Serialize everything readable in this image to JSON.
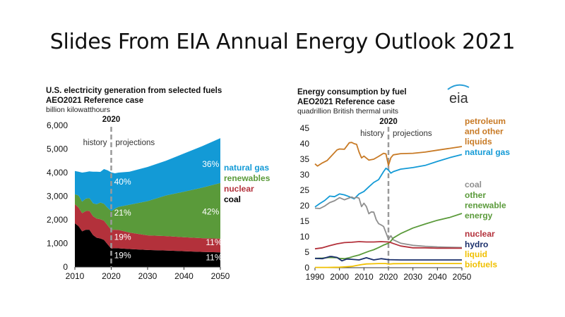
{
  "slide": {
    "title": "Slides From EIA Annual Energy Outlook 2021"
  },
  "colors": {
    "natural_gas": "#139ad6",
    "renewables": "#5a9a3a",
    "nuclear": "#b3313b",
    "coal": "#000000",
    "petroleum": "#c87a25",
    "coal_line": "#8f8f8f",
    "hydro": "#1a2f6b",
    "biofuels": "#f0c000"
  },
  "chart_data": [
    {
      "type": "area",
      "title": "U.S. electricity generation from selected fuels",
      "subtitle": "AEO2021 Reference case",
      "unit": "billion kilowatthours",
      "divider_label": "2020",
      "history_label": "history",
      "projection_label": "projections",
      "xlim": [
        2010,
        2050
      ],
      "ylim": [
        0,
        6000
      ],
      "x_ticks": [
        2010,
        2020,
        2030,
        2040,
        2050
      ],
      "y_ticks": [
        0,
        1000,
        2000,
        3000,
        4000,
        5000,
        6000
      ],
      "y_tick_labels": [
        "0",
        "1,000",
        "2,000",
        "3,000",
        "4,000",
        "5,000",
        "6,000"
      ],
      "x": [
        2010,
        2011,
        2012,
        2013,
        2014,
        2015,
        2016,
        2017,
        2018,
        2019,
        2020,
        2021,
        2022,
        2025,
        2030,
        2035,
        2040,
        2045,
        2050
      ],
      "series": [
        {
          "name": "coal",
          "color_key": "coal",
          "values": [
            1850,
            1730,
            1510,
            1580,
            1580,
            1350,
            1240,
            1210,
            1150,
            960,
            780,
            800,
            790,
            760,
            720,
            700,
            670,
            640,
            620
          ]
        },
        {
          "name": "nuclear",
          "color_key": "nuclear",
          "values": [
            810,
            790,
            770,
            790,
            800,
            800,
            810,
            810,
            810,
            810,
            790,
            780,
            780,
            700,
            620,
            610,
            590,
            580,
            580
          ]
        },
        {
          "name": "renewables",
          "color_key": "renewables",
          "values": [
            420,
            510,
            490,
            530,
            540,
            550,
            610,
            710,
            720,
            740,
            800,
            890,
            980,
            1180,
            1450,
            1720,
            1930,
            2140,
            2360
          ]
        },
        {
          "name": "natural gas",
          "color_key": "natural_gas",
          "values": [
            990,
            1010,
            1230,
            1120,
            1130,
            1340,
            1380,
            1300,
            1470,
            1590,
            1640,
            1500,
            1450,
            1400,
            1450,
            1470,
            1620,
            1760,
            1900
          ]
        }
      ],
      "annotations": [
        {
          "text": "40%",
          "x": 2020.8,
          "y": 3500
        },
        {
          "text": "36%",
          "x": 2045,
          "y": 4240
        },
        {
          "text": "21%",
          "x": 2020.8,
          "y": 2180
        },
        {
          "text": "42%",
          "x": 2045,
          "y": 2220
        },
        {
          "text": "19%",
          "x": 2020.8,
          "y": 1150
        },
        {
          "text": "11%",
          "x": 2046,
          "y": 930
        },
        {
          "text": "19%",
          "x": 2020.8,
          "y": 370
        },
        {
          "text": "11%",
          "x": 2046,
          "y": 280
        }
      ],
      "legend": [
        {
          "text": "natural gas",
          "color_key": "natural_gas"
        },
        {
          "text": "renewables",
          "color_key": "renewables"
        },
        {
          "text": "nuclear",
          "color_key": "nuclear"
        },
        {
          "text": "coal",
          "color_key": "coal"
        }
      ]
    },
    {
      "type": "line",
      "title": "Energy consumption by fuel",
      "subtitle": "AEO2021 Reference case",
      "unit": "quadrillion British thermal units",
      "logo": "eia",
      "divider_label": "2020",
      "history_label": "history",
      "projection_label": "projections",
      "xlim": [
        1990,
        2050
      ],
      "ylim": [
        0,
        45
      ],
      "x_ticks": [
        1990,
        2000,
        2010,
        2020,
        2030,
        2040,
        2050
      ],
      "y_ticks": [
        0,
        5,
        10,
        15,
        20,
        25,
        30,
        35,
        40,
        45
      ],
      "series": [
        {
          "name": "petroleum and other liquids",
          "color_key": "petroleum",
          "x": [
            1990,
            1991,
            1993,
            1995,
            1997,
            1999,
            2000,
            2002,
            2004,
            2005,
            2006,
            2007,
            2008,
            2009,
            2010,
            2012,
            2014,
            2016,
            2018,
            2019,
            2020,
            2021,
            2022,
            2025,
            2030,
            2035,
            2040,
            2045,
            2050
          ],
          "y": [
            33.5,
            32.8,
            33.8,
            34.6,
            36.3,
            38.0,
            38.3,
            38.2,
            40.3,
            40.4,
            40.0,
            39.8,
            37.3,
            35.4,
            36.0,
            34.7,
            35.0,
            35.9,
            36.9,
            36.7,
            33.0,
            35.5,
            36.4,
            36.8,
            36.9,
            37.3,
            37.9,
            38.5,
            39.1
          ]
        },
        {
          "name": "natural gas",
          "color_key": "natural_gas",
          "x": [
            1990,
            1992,
            1994,
            1996,
            1998,
            2000,
            2002,
            2004,
            2006,
            2008,
            2010,
            2012,
            2014,
            2016,
            2018,
            2019,
            2020,
            2021,
            2022,
            2025,
            2030,
            2035,
            2040,
            2045,
            2050
          ],
          "y": [
            19.6,
            20.7,
            21.7,
            23.1,
            22.9,
            23.8,
            23.5,
            22.9,
            22.2,
            23.8,
            24.6,
            26.1,
            27.5,
            28.4,
            31.0,
            32.1,
            31.5,
            30.5,
            31.0,
            31.8,
            32.3,
            33.0,
            34.3,
            35.5,
            36.5
          ]
        },
        {
          "name": "coal",
          "color_key": "coal_line",
          "x": [
            1990,
            1992,
            1994,
            1996,
            1998,
            2000,
            2002,
            2004,
            2005,
            2006,
            2007,
            2008,
            2009,
            2010,
            2011,
            2012,
            2013,
            2014,
            2015,
            2016,
            2017,
            2018,
            2019,
            2020,
            2021,
            2022,
            2025,
            2030,
            2035,
            2040,
            2045,
            2050
          ],
          "y": [
            19.2,
            19.1,
            19.9,
            21.0,
            21.6,
            22.6,
            21.9,
            22.5,
            22.8,
            22.4,
            22.7,
            22.4,
            19.7,
            20.8,
            19.7,
            17.4,
            18.0,
            17.9,
            15.5,
            14.2,
            13.8,
            13.3,
            11.3,
            9.2,
            10.3,
            9.0,
            7.9,
            7.2,
            6.9,
            6.7,
            6.6,
            6.5
          ]
        },
        {
          "name": "other renewable energy",
          "color_key": "renewables",
          "x": [
            1990,
            1993,
            1996,
            1999,
            2000,
            2002,
            2004,
            2006,
            2008,
            2010,
            2012,
            2014,
            2016,
            2018,
            2019,
            2020,
            2021,
            2022,
            2025,
            2030,
            2035,
            2040,
            2045,
            2050
          ],
          "y": [
            3.0,
            3.1,
            3.3,
            3.2,
            3.0,
            2.9,
            3.2,
            3.7,
            4.1,
            4.7,
            5.3,
            5.8,
            6.5,
            7.3,
            7.6,
            7.9,
            8.6,
            9.6,
            11.0,
            12.8,
            14.1,
            15.3,
            16.2,
            17.5
          ]
        },
        {
          "name": "nuclear",
          "color_key": "nuclear",
          "x": [
            1990,
            1993,
            1996,
            1999,
            2002,
            2005,
            2008,
            2011,
            2014,
            2017,
            2020,
            2021,
            2022,
            2025,
            2030,
            2035,
            2040,
            2045,
            2050
          ],
          "y": [
            6.1,
            6.4,
            7.1,
            7.7,
            8.1,
            8.2,
            8.4,
            8.3,
            8.3,
            8.4,
            8.3,
            8.1,
            7.8,
            7.0,
            6.4,
            6.4,
            6.3,
            6.3,
            6.3
          ]
        },
        {
          "name": "hydro",
          "color_key": "hydro",
          "x": [
            1990,
            1993,
            1996,
            1997,
            1999,
            2001,
            2003,
            2005,
            2008,
            2011,
            2014,
            2017,
            2020,
            2025,
            2030,
            2040,
            2050
          ],
          "y": [
            3.0,
            2.9,
            3.6,
            3.6,
            3.3,
            2.2,
            2.8,
            2.7,
            2.5,
            3.2,
            2.5,
            2.9,
            2.6,
            2.5,
            2.5,
            2.5,
            2.5
          ]
        },
        {
          "name": "liquid biofuels",
          "color_key": "biofuels",
          "x": [
            1990,
            1995,
            2000,
            2003,
            2005,
            2007,
            2009,
            2011,
            2013,
            2016,
            2019,
            2020,
            2022,
            2030,
            2040,
            2050
          ],
          "y": [
            0.1,
            0.1,
            0.15,
            0.3,
            0.4,
            0.7,
            1.0,
            1.2,
            1.25,
            1.35,
            1.35,
            1.15,
            1.3,
            1.35,
            1.35,
            1.35
          ]
        }
      ],
      "legend": [
        {
          "lines": [
            "petroleum",
            "and other",
            "liquids"
          ],
          "color_key": "petroleum"
        },
        {
          "lines": [
            "natural gas"
          ],
          "color_key": "natural_gas"
        },
        {
          "lines": [
            "coal"
          ],
          "color_key": "coal_line"
        },
        {
          "lines": [
            "other",
            "renewable",
            "energy"
          ],
          "color_key": "renewables"
        },
        {
          "lines": [
            "nuclear"
          ],
          "color_key": "nuclear"
        },
        {
          "lines": [
            "hydro"
          ],
          "color_key": "hydro"
        },
        {
          "lines": [
            "liquid",
            "biofuels"
          ],
          "color_key": "biofuels"
        }
      ]
    }
  ]
}
